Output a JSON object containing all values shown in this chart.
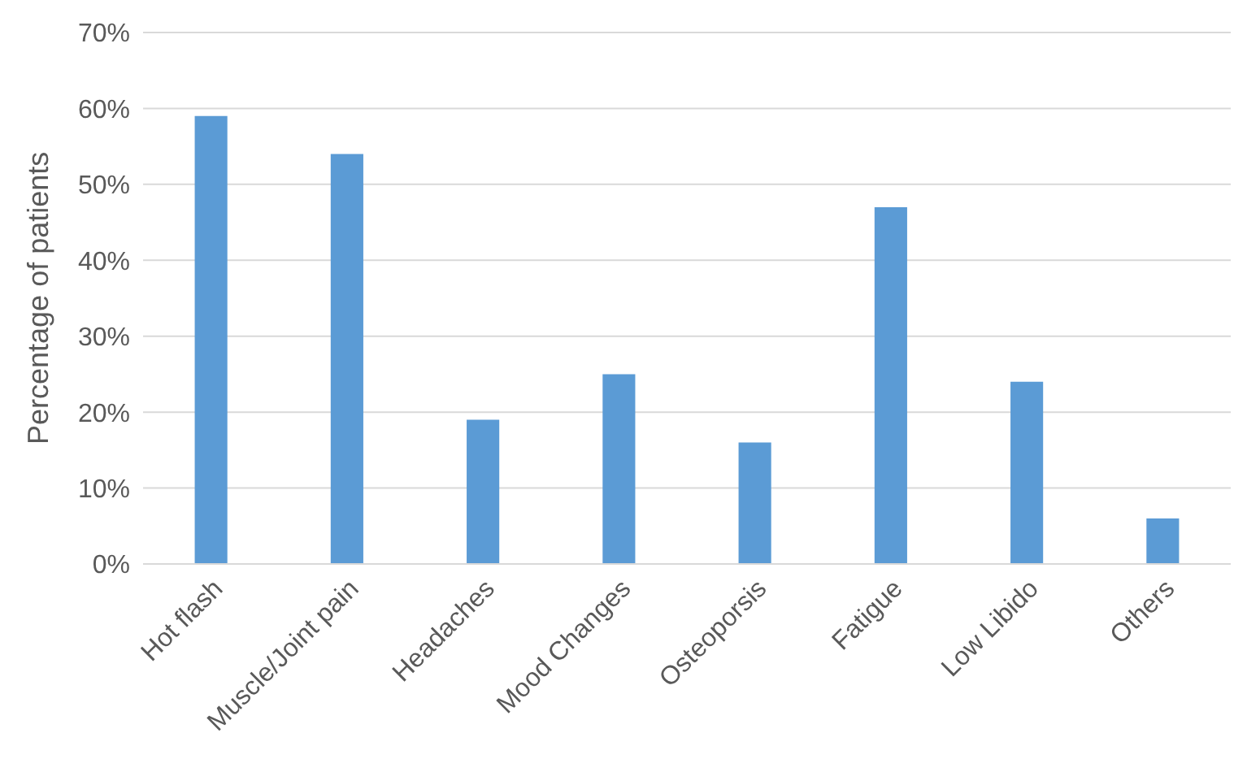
{
  "chart_data": {
    "type": "bar",
    "ylabel": "Percentage of patients",
    "categories": [
      "Hot flash",
      "Muscle/Joint pain",
      "Headaches",
      "Mood Changes",
      "Osteoporsis",
      "Fatigue",
      "Low Libido",
      "Others"
    ],
    "values": [
      59,
      54,
      19,
      25,
      16,
      47,
      24,
      6
    ],
    "color": "#5b9bd5",
    "ylim": [
      0,
      70
    ],
    "yticks": [
      {
        "value": 0,
        "label": "0%"
      },
      {
        "value": 10,
        "label": "10%"
      },
      {
        "value": 20,
        "label": "20%"
      },
      {
        "value": 30,
        "label": "30%"
      },
      {
        "value": 40,
        "label": "40%"
      },
      {
        "value": 50,
        "label": "50%"
      },
      {
        "value": 60,
        "label": "60%"
      },
      {
        "value": 70,
        "label": "70%"
      }
    ],
    "grid": "y"
  }
}
